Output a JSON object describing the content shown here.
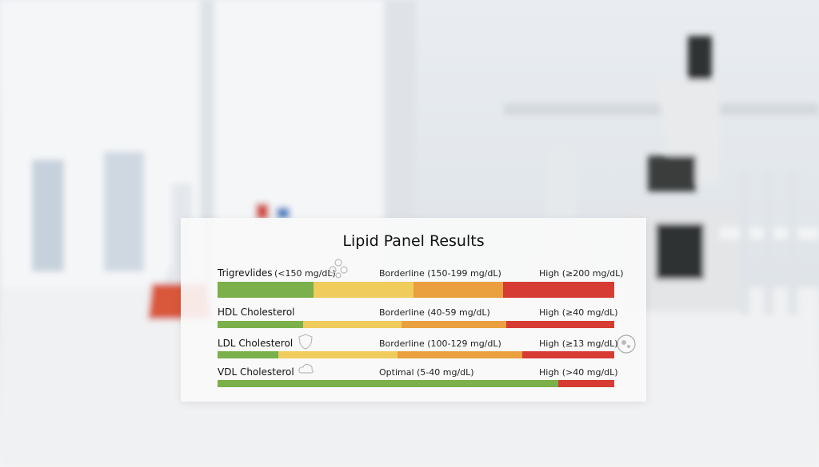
{
  "title": "Lipid Panel Results",
  "rows": [
    {
      "name": "Trigrevlides",
      "optimal": "(<150 mg/dL)",
      "borderline": "Borderline (150-199 mg/dL)",
      "high": "High (≥200 mg/dL)"
    },
    {
      "name": "HDL Cholesterol",
      "borderline": "Borderline (40-59 mg/dL)",
      "high": "High (≥40 mg/dL)"
    },
    {
      "name": "LDL Cholesterol",
      "borderline": "Borderline (100-129 mg/dL)",
      "high": "High (≥13 mg/dL)"
    },
    {
      "name": "VDL Cholesterol",
      "optimal": "Optimal (5-40 mg/dL)",
      "high": "High (>40 mg/dL)"
    }
  ]
}
